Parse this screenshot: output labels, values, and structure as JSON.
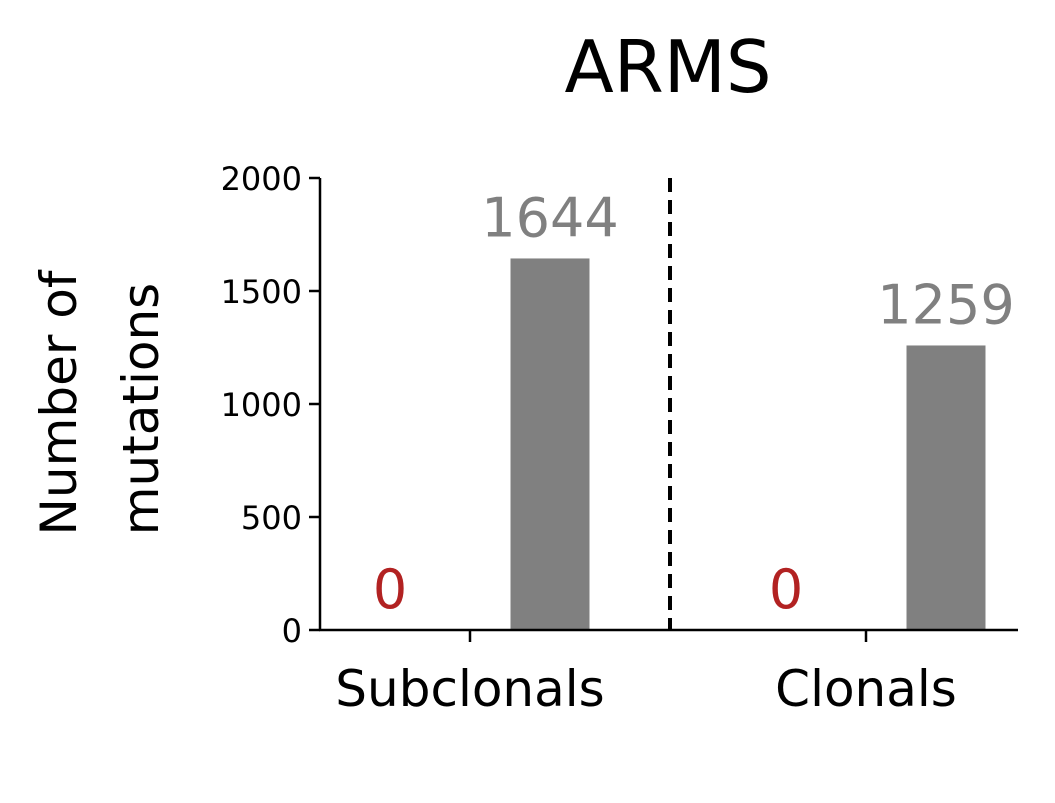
{
  "chart_data": {
    "type": "bar",
    "title": "ARMS",
    "ylabel_lines": [
      "Number of",
      "mutations"
    ],
    "xlabel": "",
    "categories": [
      "Subclonals",
      "Clonals"
    ],
    "series": [
      {
        "values": [
          0,
          0
        ],
        "color": "#b22222",
        "label_color": "#b22222"
      },
      {
        "values": [
          1644,
          1259
        ],
        "color": "#808080",
        "label_color": "#808080"
      }
    ],
    "data_labels": [
      [
        "0",
        "0"
      ],
      [
        "1644",
        "1259"
      ]
    ],
    "ylim": [
      0,
      2000
    ],
    "yticks": [
      0,
      500,
      1000,
      1500,
      2000
    ],
    "ytick_labels": [
      "0",
      "500",
      "1000",
      "1500",
      "2000"
    ],
    "divider": {
      "at": "between categories",
      "style": "dashed",
      "color": "#000000"
    },
    "grid": false,
    "legend": "none",
    "axis_color": "#000000"
  }
}
